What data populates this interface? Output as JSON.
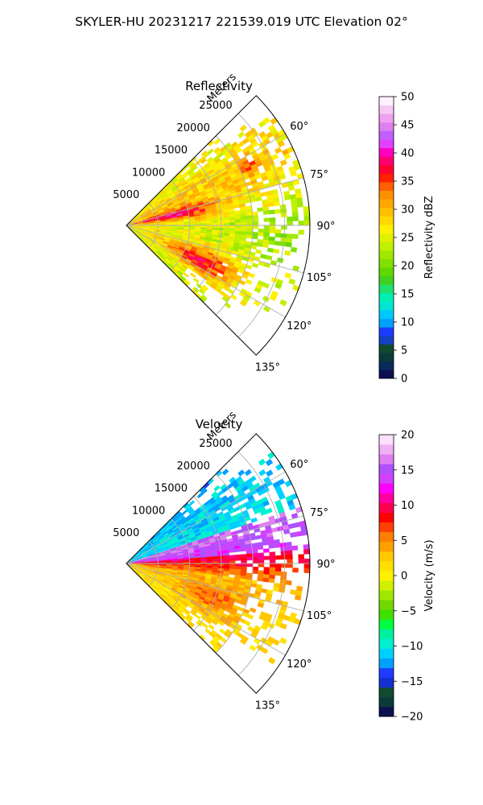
{
  "figure_title": "SKYLER-HU  20231217  221539.019 UTC Elevation 02°",
  "chart_data": [
    {
      "type": "heatmap",
      "projection": "polar-sector",
      "title": "Reflectivity",
      "radial_label": "Meters",
      "radial_ticks": [
        5000,
        10000,
        15000,
        20000,
        25000
      ],
      "radial_tick_labels": [
        "5000",
        "10000",
        "15000",
        "20000",
        "25000"
      ],
      "radial_max": 29000,
      "azimuth_range_deg": [
        45,
        135
      ],
      "azimuth_ticks_deg": [
        60,
        75,
        90,
        105,
        120,
        135
      ],
      "azimuth_tick_labels": [
        "60°",
        "75°",
        "90°",
        "105°",
        "120°",
        "135°"
      ],
      "grid": true,
      "colorbar": {
        "label": "Reflectivity dBZ",
        "min": 0,
        "max": 50,
        "ticks": [
          0,
          5,
          10,
          15,
          20,
          25,
          30,
          35,
          40,
          45,
          50
        ],
        "tick_labels": [
          "0",
          "5",
          "10",
          "15",
          "20",
          "25",
          "30",
          "35",
          "40",
          "45",
          "50"
        ],
        "colors": [
          "#0a1050",
          "#0a2a5a",
          "#0b3a3a",
          "#104a30",
          "#1540c0",
          "#1e3cff",
          "#00a0ff",
          "#00c8ff",
          "#00e6d2",
          "#00f0b4",
          "#20e070",
          "#40d020",
          "#60d800",
          "#80e000",
          "#a0e800",
          "#c0f000",
          "#e0f000",
          "#fff000",
          "#ffd800",
          "#ffc000",
          "#ffa800",
          "#ff9000",
          "#ff6000",
          "#ff2000",
          "#ff0030",
          "#ff0070",
          "#ff00c0",
          "#e040ff",
          "#c060ff",
          "#e080f0",
          "#f0a0f0",
          "#f8c8f4",
          "#fff0ff"
        ]
      },
      "field_summary": "Values mostly 20-30 dBZ across the sector; higher values (35-40 dBZ) near origin at about 75-80° and around 110-120° within 8000 m; lower values 18-22 dBZ toward far range near 90°."
    },
    {
      "type": "heatmap",
      "projection": "polar-sector",
      "title": "Velocity",
      "radial_label": "Meters",
      "radial_ticks": [
        5000,
        10000,
        15000,
        20000,
        25000
      ],
      "radial_tick_labels": [
        "5000",
        "10000",
        "15000",
        "20000",
        "25000"
      ],
      "radial_max": 29000,
      "azimuth_range_deg": [
        45,
        135
      ],
      "azimuth_ticks_deg": [
        60,
        75,
        90,
        105,
        120,
        135
      ],
      "azimuth_tick_labels": [
        "60°",
        "75°",
        "90°",
        "105°",
        "120°",
        "135°"
      ],
      "grid": true,
      "colorbar": {
        "label": "Velocity (m/s)",
        "min": -20,
        "max": 20,
        "ticks": [
          -20,
          -15,
          -10,
          -5,
          0,
          5,
          10,
          15,
          20
        ],
        "tick_labels": [
          "−20",
          "−15",
          "−10",
          "−5",
          "0",
          "5",
          "10",
          "15",
          "20"
        ],
        "colors": [
          "#0a1050",
          "#0b3a3a",
          "#104a30",
          "#1530d0",
          "#1e3cff",
          "#00a0ff",
          "#00d0ff",
          "#00f0d0",
          "#00f0a0",
          "#00ff40",
          "#40e000",
          "#70d800",
          "#a0e800",
          "#d0f000",
          "#fff000",
          "#ffe000",
          "#ffc800",
          "#ffa000",
          "#ff8000",
          "#ff4000",
          "#ff0000",
          "#ff0050",
          "#ff00a0",
          "#ff00ff",
          "#d040ff",
          "#b050ff",
          "#e080f0",
          "#f0b0f4",
          "#fce0fc"
        ]
      },
      "field_summary": "Negative velocities (-10 to -13 m/s) at about 60-70° far range; positive 13-18 m/s at 75-85°; about 10 m/s near 90°; 0-5 m/s across 95-135°."
    }
  ]
}
